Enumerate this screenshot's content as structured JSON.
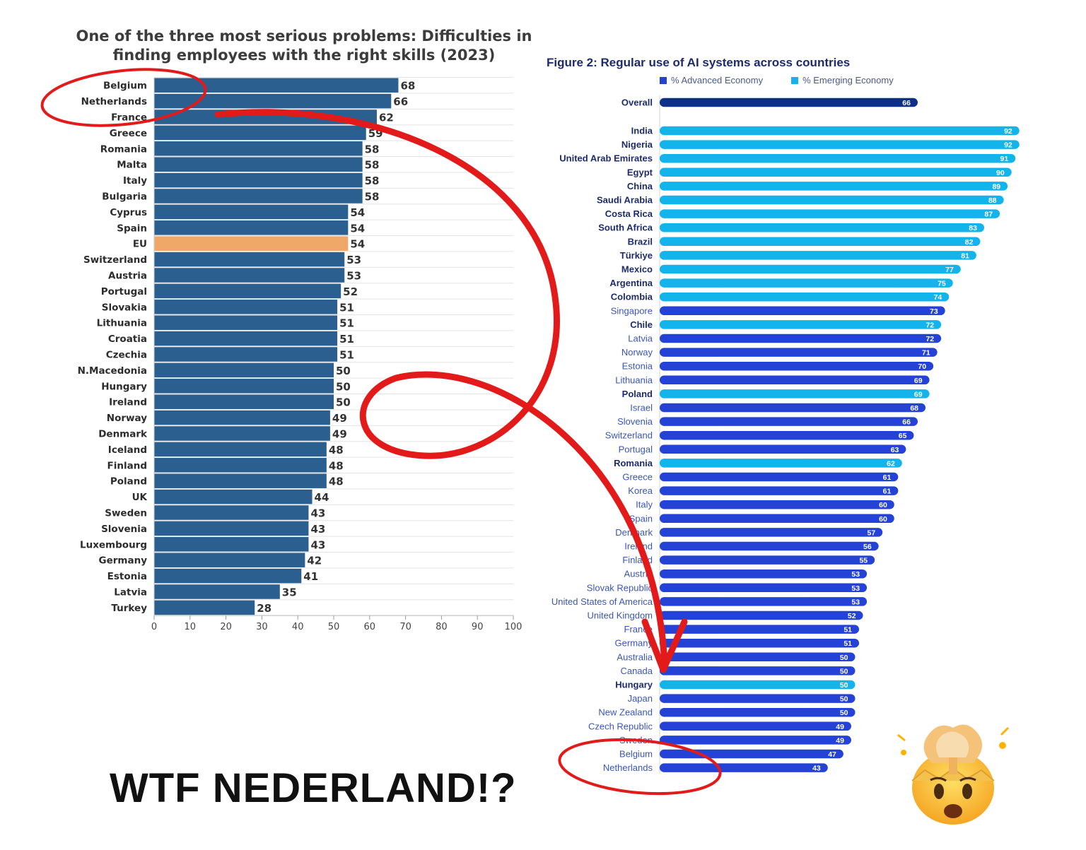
{
  "left_chart": {
    "title_line1": "One of the three most serious problems: Difficulties in",
    "title_line2": "finding employees with the right skills (2023)"
  },
  "right_chart": {
    "title": "Figure 2: Regular use of AI systems across countries",
    "legend": {
      "advanced_label": "% Advanced Economy",
      "emerging_label": "% Emerging Economy"
    }
  },
  "caption": "WTF NEDERLAND!?",
  "emoji_icon": "exploding-head-icon",
  "colors": {
    "left_bar": "#2a5f8f",
    "left_highlight": "#f0a868",
    "right_overall": "#0d2f8c",
    "right_advanced": "#2542d6",
    "right_emerging": "#13b4ec",
    "annotation_red": "#e31a1a"
  },
  "chart_data": [
    {
      "type": "bar",
      "orientation": "horizontal",
      "title": "One of the three most serious problems: Difficulties in finding employees with the right skills (2023)",
      "categories": [
        "Belgium",
        "Netherlands",
        "France",
        "Greece",
        "Romania",
        "Malta",
        "Italy",
        "Bulgaria",
        "Cyprus",
        "Spain",
        "EU",
        "Switzerland",
        "Austria",
        "Portugal",
        "Slovakia",
        "Lithuania",
        "Croatia",
        "Czechia",
        "N.Macedonia",
        "Hungary",
        "Ireland",
        "Norway",
        "Denmark",
        "Iceland",
        "Finland",
        "Poland",
        "UK",
        "Sweden",
        "Slovenia",
        "Luxembourg",
        "Germany",
        "Estonia",
        "Latvia",
        "Turkey"
      ],
      "values": [
        68,
        66,
        62,
        59,
        58,
        58,
        58,
        58,
        54,
        54,
        54,
        53,
        53,
        52,
        51,
        51,
        51,
        51,
        50,
        50,
        50,
        49,
        49,
        48,
        48,
        48,
        44,
        43,
        43,
        43,
        42,
        41,
        35,
        28
      ],
      "highlight": "EU",
      "xlim": [
        0,
        100
      ],
      "xticks": [
        0,
        10,
        20,
        30,
        40,
        50,
        60,
        70,
        80,
        90,
        100
      ]
    },
    {
      "type": "bar",
      "orientation": "horizontal",
      "title": "Figure 2: Regular use of AI systems across countries",
      "legend": [
        "% Advanced Economy",
        "% Emerging Economy"
      ],
      "categories": [
        "Overall",
        "India",
        "Nigeria",
        "United Arab Emirates",
        "Egypt",
        "China",
        "Saudi Arabia",
        "Costa Rica",
        "South Africa",
        "Brazil",
        "Türkiye",
        "Mexico",
        "Argentina",
        "Colombia",
        "Singapore",
        "Chile",
        "Latvia",
        "Norway",
        "Estonia",
        "Lithuania",
        "Poland",
        "Israel",
        "Slovenia",
        "Switzerland",
        "Portugal",
        "Romania",
        "Greece",
        "Korea",
        "Italy",
        "Spain",
        "Denmark",
        "Ireland",
        "Finland",
        "Austria",
        "Slovak Republic",
        "United States of America",
        "United Kingdom",
        "France",
        "Germany",
        "Australia",
        "Canada",
        "Hungary",
        "Japan",
        "New Zealand",
        "Czech Republic",
        "Sweden",
        "Belgium",
        "Netherlands"
      ],
      "values": [
        66,
        92,
        92,
        91,
        90,
        89,
        88,
        87,
        83,
        82,
        81,
        77,
        75,
        74,
        73,
        72,
        72,
        71,
        70,
        69,
        69,
        68,
        66,
        65,
        63,
        62,
        61,
        61,
        60,
        60,
        57,
        56,
        55,
        53,
        53,
        53,
        52,
        51,
        51,
        50,
        50,
        50,
        50,
        50,
        49,
        49,
        47,
        43
      ],
      "economy": [
        "Overall",
        "Emerging",
        "Emerging",
        "Emerging",
        "Emerging",
        "Emerging",
        "Emerging",
        "Emerging",
        "Emerging",
        "Emerging",
        "Emerging",
        "Emerging",
        "Emerging",
        "Emerging",
        "Advanced",
        "Emerging",
        "Advanced",
        "Advanced",
        "Advanced",
        "Advanced",
        "Emerging",
        "Advanced",
        "Advanced",
        "Advanced",
        "Advanced",
        "Emerging",
        "Advanced",
        "Advanced",
        "Advanced",
        "Advanced",
        "Advanced",
        "Advanced",
        "Advanced",
        "Advanced",
        "Advanced",
        "Advanced",
        "Advanced",
        "Advanced",
        "Advanced",
        "Advanced",
        "Advanced",
        "Emerging",
        "Advanced",
        "Advanced",
        "Advanced",
        "Advanced",
        "Advanced",
        "Advanced"
      ]
    }
  ]
}
